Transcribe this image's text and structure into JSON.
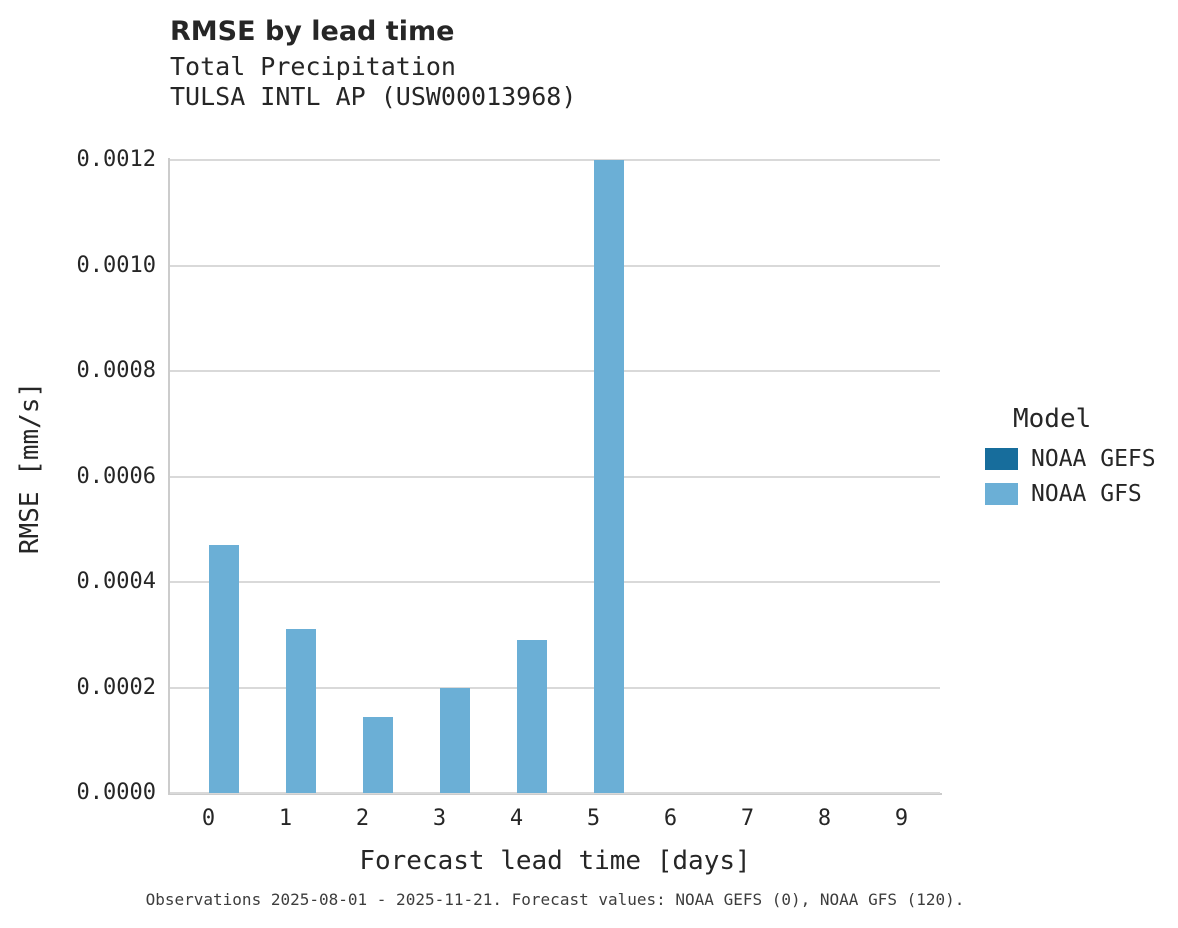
{
  "header": {
    "title": "RMSE by lead time",
    "subtitle_line1": "Total Precipitation",
    "subtitle_line2": "TULSA INTL AP (USW00013968)"
  },
  "axes": {
    "x_label": "Forecast lead time [days]",
    "y_label": "RMSE [mm/s]"
  },
  "legend": {
    "title": "Model",
    "entries": [
      {
        "label": "NOAA GEFS",
        "color": "#176d9c"
      },
      {
        "label": "NOAA GFS",
        "color": "#6bafd6"
      }
    ]
  },
  "footer": {
    "note": "Observations 2025-08-01 - 2025-11-21. Forecast values: NOAA GEFS (0), NOAA GFS (120)."
  },
  "chart_data": {
    "type": "bar",
    "title": "RMSE by lead time",
    "subtitle": "Total Precipitation — TULSA INTL AP (USW00013968)",
    "xlabel": "Forecast lead time [days]",
    "ylabel": "RMSE [mm/s]",
    "categories": [
      "0",
      "1",
      "2",
      "3",
      "4",
      "5",
      "6",
      "7",
      "8",
      "9"
    ],
    "series": [
      {
        "name": "NOAA GEFS",
        "color": "#176d9c",
        "values": [
          0,
          0,
          0,
          0,
          0,
          0,
          0,
          0,
          0,
          0
        ]
      },
      {
        "name": "NOAA GFS",
        "color": "#6bafd6",
        "values": [
          0.00047,
          0.00031,
          0.000145,
          0.0002,
          0.00029,
          0.0012,
          0,
          0,
          0,
          0
        ]
      }
    ],
    "ylim": [
      0,
      0.0012
    ],
    "yticks": [
      "0.0000",
      "0.0002",
      "0.0004",
      "0.0006",
      "0.0008",
      "0.0010",
      "0.0012"
    ],
    "grid": true,
    "legend_position": "right",
    "legend_title": "Model"
  }
}
